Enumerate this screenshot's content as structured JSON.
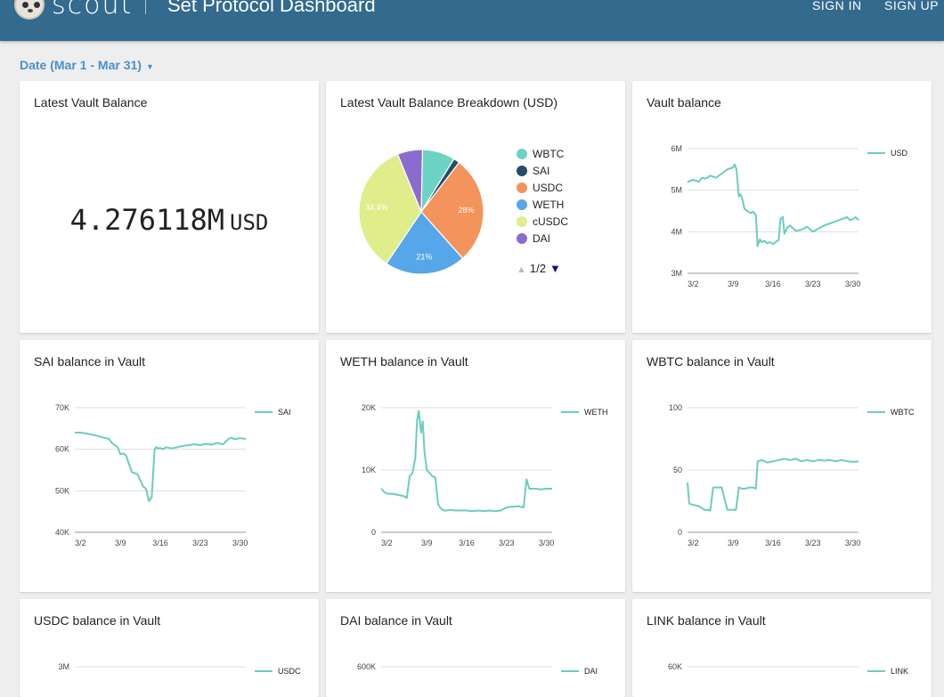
{
  "header": {
    "brand": "scout",
    "title": "Set Protocol Dashboard",
    "sign_in": "SIGN IN",
    "sign_up": "SIGN UP"
  },
  "filters": {
    "date": "Date (Mar 1 - Mar 31)"
  },
  "cards": {
    "latest_balance": {
      "title": "Latest Vault Balance",
      "value": "4.276118M",
      "unit": "USD"
    },
    "breakdown": {
      "title": "Latest Vault Balance Breakdown (USD)",
      "pager": "1/2"
    },
    "vault_balance": {
      "title": "Vault balance"
    },
    "sai": {
      "title": "SAI balance in Vault"
    },
    "weth": {
      "title": "WETH balance in Vault"
    },
    "wbtc": {
      "title": "WBTC balance in Vault"
    },
    "usdc": {
      "title": "USDC balance in Vault"
    },
    "dai": {
      "title": "DAI balance in Vault"
    },
    "link": {
      "title": "LINK balance in Vault"
    }
  },
  "colors": {
    "line": "#6cccbf",
    "header": "#336a8e",
    "accent": "#4a90c8"
  },
  "chart_data": [
    {
      "id": "breakdown",
      "type": "pie",
      "title": "Latest Vault Balance Breakdown (USD)",
      "categories": [
        "WBTC",
        "SAI",
        "USDC",
        "WETH",
        "cUSDC",
        "DAI"
      ],
      "values": [
        8.5,
        1.6,
        28,
        21,
        34.4,
        6.5
      ],
      "labels": [
        "",
        "",
        "28%",
        "21%",
        "34.4%",
        ""
      ],
      "colors": [
        "#6dd3c4",
        "#264d6b",
        "#f4935b",
        "#56a6ea",
        "#dfed8b",
        "#8c6bd0"
      ],
      "legend": "right"
    },
    {
      "id": "vault",
      "type": "line",
      "series": [
        {
          "name": "USD"
        }
      ],
      "y_ticks": [
        "6M",
        "5M",
        "4M",
        "3M"
      ],
      "ylim": [
        3,
        6
      ],
      "x_ticks": [
        "3/2",
        "3/9",
        "3/16",
        "3/23",
        "3/30"
      ],
      "xlim": [
        1,
        31
      ],
      "x": [
        1,
        2,
        3,
        3.5,
        4,
        4.5,
        5,
        6,
        7,
        8,
        9,
        9.3,
        9.6,
        10,
        10.3,
        10.6,
        11,
        11.5,
        12,
        12.5,
        13,
        13.3,
        13.7,
        14,
        14.5,
        15,
        15.5,
        16,
        16.5,
        17,
        17.3,
        17.7,
        18,
        18.5,
        19,
        20,
        21,
        22,
        23,
        24,
        25,
        26,
        27,
        28,
        29,
        29.5,
        30,
        30.5,
        31
      ],
      "y": [
        5.2,
        5.25,
        5.2,
        5.3,
        5.28,
        5.3,
        5.35,
        5.3,
        5.4,
        5.5,
        5.55,
        5.62,
        5.5,
        4.85,
        4.9,
        4.8,
        4.55,
        4.5,
        4.45,
        4.48,
        4.4,
        3.65,
        3.82,
        3.75,
        3.78,
        3.72,
        3.75,
        3.7,
        3.76,
        3.8,
        4.3,
        4.36,
        3.95,
        4.1,
        4.15,
        4.02,
        4.05,
        4.12,
        4.0,
        4.08,
        4.15,
        4.2,
        4.25,
        4.3,
        4.35,
        4.28,
        4.3,
        4.35,
        4.28
      ]
    },
    {
      "id": "sai",
      "type": "line",
      "series": [
        {
          "name": "SAI"
        }
      ],
      "y_ticks": [
        "70K",
        "60K",
        "50K",
        "40K"
      ],
      "ylim": [
        40,
        70
      ],
      "x_ticks": [
        "3/2",
        "3/9",
        "3/16",
        "3/23",
        "3/30"
      ],
      "xlim": [
        1,
        31
      ],
      "x": [
        1,
        2,
        3,
        4,
        5,
        6,
        7,
        7.5,
        8,
        8.5,
        9,
        9.5,
        10,
        11,
        12,
        13,
        13.5,
        14,
        14.5,
        15,
        15.3,
        15.6,
        16,
        16.5,
        17,
        18,
        19,
        20,
        21,
        22,
        23,
        24,
        25,
        26,
        27,
        28,
        28.5,
        29,
        30,
        31
      ],
      "y": [
        64,
        64,
        63.8,
        63.5,
        63.2,
        62.8,
        62.5,
        61.5,
        61,
        60.5,
        58.8,
        59,
        58.5,
        54.5,
        54,
        51,
        50.5,
        47.5,
        48.5,
        60,
        60.5,
        60.2,
        60.3,
        60,
        60.5,
        60.2,
        60.5,
        60.8,
        61,
        61.2,
        61,
        61.3,
        61.1,
        61.5,
        61.2,
        62.5,
        62.8,
        62.4,
        62.7,
        62.5
      ]
    },
    {
      "id": "weth",
      "type": "line",
      "series": [
        {
          "name": "WETH"
        }
      ],
      "y_ticks": [
        "20K",
        "10K",
        "0"
      ],
      "ylim": [
        0,
        20
      ],
      "x_ticks": [
        "3/2",
        "3/9",
        "3/16",
        "3/23",
        "3/30"
      ],
      "xlim": [
        1,
        31
      ],
      "x": [
        1,
        1.5,
        2,
        3,
        4,
        5,
        5.5,
        6,
        6.5,
        7,
        7.3,
        7.6,
        8,
        8.3,
        8.6,
        9,
        9.5,
        10,
        10.5,
        11,
        11.5,
        12,
        12.5,
        13,
        14,
        15,
        16,
        17,
        18,
        19,
        20,
        21,
        22,
        23,
        24,
        25,
        26,
        26.5,
        27,
        28,
        29,
        30,
        31
      ],
      "y": [
        7,
        6.5,
        6.2,
        6.2,
        6.0,
        5.8,
        5.5,
        9,
        9.5,
        12,
        18,
        19.5,
        16,
        17.8,
        13,
        10,
        9.5,
        9,
        8.8,
        4.5,
        3.8,
        3.5,
        3.5,
        3.6,
        3.5,
        3.5,
        3.5,
        3.4,
        3.5,
        3.4,
        3.5,
        3.4,
        3.5,
        4,
        4.1,
        4.2,
        4,
        8.5,
        7,
        7,
        6.9,
        7,
        7
      ]
    },
    {
      "id": "wbtc",
      "type": "line",
      "series": [
        {
          "name": "WBTC"
        }
      ],
      "y_ticks": [
        "100",
        "50",
        "0"
      ],
      "ylim": [
        0,
        100
      ],
      "x_ticks": [
        "3/2",
        "3/9",
        "3/16",
        "3/23",
        "3/30"
      ],
      "xlim": [
        1,
        31
      ],
      "x": [
        1,
        1.3,
        2,
        3,
        4,
        4.5,
        5,
        5.5,
        6,
        7,
        8,
        8.3,
        9,
        9.5,
        10,
        10.5,
        11,
        12,
        12.5,
        13,
        13.3,
        14,
        15,
        16,
        17,
        18,
        19,
        20,
        21,
        22,
        23,
        24,
        25,
        26,
        27,
        28,
        29,
        30,
        31
      ],
      "y": [
        40,
        23,
        22,
        21,
        18,
        18,
        17.5,
        36,
        36,
        36,
        18,
        18,
        18,
        18,
        36,
        35,
        35,
        36,
        36,
        35,
        57,
        58,
        56,
        57,
        58,
        59,
        58,
        59,
        57,
        58,
        57,
        58,
        57.5,
        58,
        57,
        58,
        57,
        56.5,
        57
      ]
    },
    {
      "id": "usdc",
      "type": "line",
      "series": [
        {
          "name": "USDC"
        }
      ],
      "y_ticks": [
        "3M"
      ]
    },
    {
      "id": "dai",
      "type": "line",
      "series": [
        {
          "name": "DAI"
        }
      ],
      "y_ticks": [
        "600K"
      ]
    },
    {
      "id": "link",
      "type": "line",
      "series": [
        {
          "name": "LINK"
        }
      ],
      "y_ticks": [
        "60K"
      ]
    }
  ]
}
